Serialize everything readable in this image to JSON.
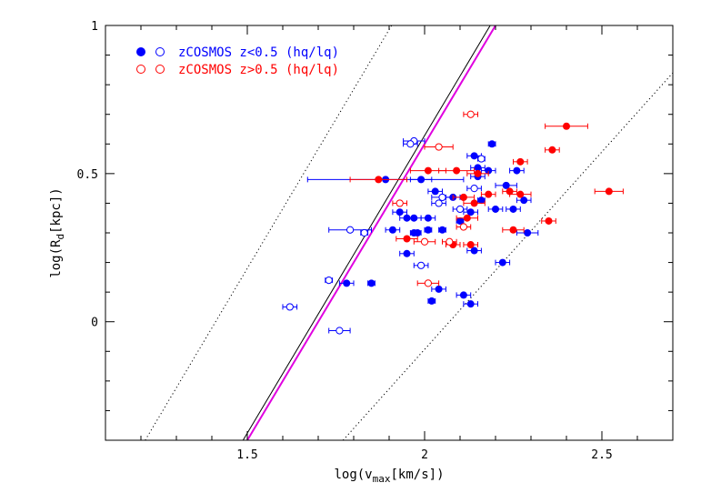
{
  "chart_data": {
    "type": "scatter",
    "xlabel": "log(v_max[km/s])",
    "ylabel": "log(R_d[kpc])",
    "xlabel_parts": {
      "pre": "log(v",
      "sub": "max",
      "post": "[km/s])"
    },
    "ylabel_parts": {
      "pre": "log(R",
      "sub": "d",
      "post": "[kpc])"
    },
    "xlim": [
      1.1,
      2.7
    ],
    "ylim": [
      -0.4,
      1.0
    ],
    "x_ticks": [
      1.5,
      2.0,
      2.5
    ],
    "x_tick_labels": [
      "1.5",
      "2",
      "2.5"
    ],
    "y_ticks": [
      0,
      0.5,
      1
    ],
    "y_tick_labels": [
      "0",
      "0.5",
      "1"
    ],
    "colors": {
      "blue": "#0000ff",
      "red": "#ff0000",
      "magenta": "#e000e0",
      "black": "#000000"
    },
    "legend": [
      {
        "label": "zCOSMOS z<0.5 (hq/lq)",
        "color": "#0000ff"
      },
      {
        "label": "zCOSMOS z>0.5 (hq/lq)",
        "color": "#ff0000"
      }
    ],
    "lines": [
      {
        "name": "relation-black",
        "style": "solid",
        "color": "#000000",
        "x": [
          1.488,
          2.185
        ],
        "y": [
          -0.4,
          1.0
        ]
      },
      {
        "name": "relation-magenta",
        "style": "solid",
        "color": "#e000e0",
        "x": [
          1.5,
          2.2
        ],
        "y": [
          -0.4,
          1.0
        ]
      },
      {
        "name": "scatter-upper",
        "style": "dotted",
        "color": "#000000",
        "x": [
          1.212,
          1.907
        ],
        "y": [
          -0.4,
          1.0
        ]
      },
      {
        "name": "scatter-lower",
        "style": "dotted",
        "color": "#000000",
        "x": [
          1.77,
          2.7
        ],
        "y": [
          -0.4,
          0.84
        ]
      }
    ],
    "series": [
      {
        "name": "z<0.5 hq",
        "color": "#0000ff",
        "filled": true,
        "points": [
          {
            "x": 1.89,
            "y": 0.48,
            "xerr": 0.22
          },
          {
            "x": 1.99,
            "y": 0.48,
            "xerr": 0.03
          },
          {
            "x": 1.93,
            "y": 0.37,
            "xerr": 0.02
          },
          {
            "x": 1.95,
            "y": 0.35,
            "xerr": 0.02
          },
          {
            "x": 1.97,
            "y": 0.35,
            "xerr": 0.02
          },
          {
            "x": 1.91,
            "y": 0.31,
            "xerr": 0.02
          },
          {
            "x": 1.97,
            "y": 0.3,
            "xerr": 0.01
          },
          {
            "x": 1.98,
            "y": 0.3,
            "xerr": 0.01
          },
          {
            "x": 2.01,
            "y": 0.31,
            "xerr": 0.01
          },
          {
            "x": 2.01,
            "y": 0.35,
            "xerr": 0.02
          },
          {
            "x": 1.95,
            "y": 0.23,
            "xerr": 0.02
          },
          {
            "x": 2.03,
            "y": 0.44,
            "xerr": 0.02
          },
          {
            "x": 2.05,
            "y": 0.31,
            "xerr": 0.01
          },
          {
            "x": 2.08,
            "y": 0.42,
            "xerr": 0.02
          },
          {
            "x": 2.1,
            "y": 0.34,
            "xerr": 0.01
          },
          {
            "x": 2.13,
            "y": 0.37,
            "xerr": 0.02
          },
          {
            "x": 2.14,
            "y": 0.56,
            "xerr": 0.02
          },
          {
            "x": 2.15,
            "y": 0.52,
            "xerr": 0.02
          },
          {
            "x": 2.15,
            "y": 0.49,
            "xerr": 0.02
          },
          {
            "x": 2.18,
            "y": 0.51,
            "xerr": 0.02
          },
          {
            "x": 2.19,
            "y": 0.6,
            "xerr": 0.01
          },
          {
            "x": 2.2,
            "y": 0.38,
            "xerr": 0.02
          },
          {
            "x": 2.23,
            "y": 0.46,
            "xerr": 0.03
          },
          {
            "x": 2.26,
            "y": 0.51,
            "xerr": 0.02
          },
          {
            "x": 2.25,
            "y": 0.38,
            "xerr": 0.02
          },
          {
            "x": 2.28,
            "y": 0.41,
            "xerr": 0.02
          },
          {
            "x": 2.29,
            "y": 0.3,
            "xerr": 0.03
          },
          {
            "x": 2.22,
            "y": 0.2,
            "xerr": 0.02
          },
          {
            "x": 2.14,
            "y": 0.24,
            "xerr": 0.02
          },
          {
            "x": 2.11,
            "y": 0.09,
            "xerr": 0.02
          },
          {
            "x": 2.13,
            "y": 0.06,
            "xerr": 0.02
          },
          {
            "x": 2.04,
            "y": 0.11,
            "xerr": 0.02
          },
          {
            "x": 2.02,
            "y": 0.07,
            "xerr": 0.01
          },
          {
            "x": 1.78,
            "y": 0.13,
            "xerr": 0.02
          },
          {
            "x": 1.85,
            "y": 0.13,
            "xerr": 0.01
          },
          {
            "x": 2.16,
            "y": 0.41,
            "xerr": 0.01
          }
        ]
      },
      {
        "name": "z<0.5 lq",
        "color": "#0000ff",
        "filled": false,
        "points": [
          {
            "x": 1.97,
            "y": 0.61,
            "xerr": 0.03
          },
          {
            "x": 1.96,
            "y": 0.6,
            "xerr": 0.02
          },
          {
            "x": 2.05,
            "y": 0.42,
            "xerr": 0.03
          },
          {
            "x": 2.04,
            "y": 0.4,
            "xerr": 0.02
          },
          {
            "x": 2.1,
            "y": 0.38,
            "xerr": 0.02
          },
          {
            "x": 2.14,
            "y": 0.45,
            "xerr": 0.02
          },
          {
            "x": 2.16,
            "y": 0.55,
            "xerr": 0.01
          },
          {
            "x": 1.79,
            "y": 0.31,
            "xerr": 0.06
          },
          {
            "x": 1.83,
            "y": 0.3,
            "xerr": 0.01
          },
          {
            "x": 1.73,
            "y": 0.14,
            "xerr": 0.01
          },
          {
            "x": 1.62,
            "y": 0.05,
            "xerr": 0.02
          },
          {
            "x": 1.76,
            "y": -0.03,
            "xerr": 0.03
          },
          {
            "x": 1.99,
            "y": 0.19,
            "xerr": 0.02
          }
        ]
      },
      {
        "name": "z>0.5 hq",
        "color": "#ff0000",
        "filled": true,
        "points": [
          {
            "x": 1.87,
            "y": 0.48,
            "xerr": 0.08
          },
          {
            "x": 2.01,
            "y": 0.51,
            "xerr": 0.05
          },
          {
            "x": 2.09,
            "y": 0.51,
            "xerr": 0.05
          },
          {
            "x": 2.15,
            "y": 0.5,
            "xerr": 0.03
          },
          {
            "x": 2.14,
            "y": 0.4,
            "xerr": 0.03
          },
          {
            "x": 2.11,
            "y": 0.42,
            "xerr": 0.03
          },
          {
            "x": 2.12,
            "y": 0.35,
            "xerr": 0.03
          },
          {
            "x": 2.18,
            "y": 0.43,
            "xerr": 0.02
          },
          {
            "x": 2.24,
            "y": 0.44,
            "xerr": 0.02
          },
          {
            "x": 2.27,
            "y": 0.54,
            "xerr": 0.02
          },
          {
            "x": 2.27,
            "y": 0.43,
            "xerr": 0.03
          },
          {
            "x": 2.36,
            "y": 0.58,
            "xerr": 0.02
          },
          {
            "x": 2.4,
            "y": 0.66,
            "xerr": 0.06
          },
          {
            "x": 2.35,
            "y": 0.34,
            "xerr": 0.02
          },
          {
            "x": 2.25,
            "y": 0.31,
            "xerr": 0.03
          },
          {
            "x": 2.52,
            "y": 0.44,
            "xerr": 0.04
          },
          {
            "x": 2.13,
            "y": 0.26,
            "xerr": 0.02
          },
          {
            "x": 2.08,
            "y": 0.26,
            "xerr": 0.02
          },
          {
            "x": 1.95,
            "y": 0.28,
            "xerr": 0.03
          }
        ]
      },
      {
        "name": "z>0.5 lq",
        "color": "#ff0000",
        "filled": false,
        "points": [
          {
            "x": 2.13,
            "y": 0.7,
            "xerr": 0.02
          },
          {
            "x": 2.04,
            "y": 0.59,
            "xerr": 0.04
          },
          {
            "x": 1.93,
            "y": 0.4,
            "xerr": 0.02
          },
          {
            "x": 2.07,
            "y": 0.27,
            "xerr": 0.02
          },
          {
            "x": 2.0,
            "y": 0.27,
            "xerr": 0.03
          },
          {
            "x": 2.11,
            "y": 0.32,
            "xerr": 0.02
          },
          {
            "x": 2.01,
            "y": 0.13,
            "xerr": 0.03
          }
        ]
      }
    ]
  }
}
